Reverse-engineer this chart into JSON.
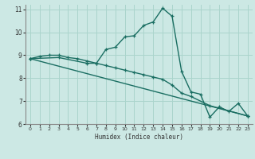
{
  "xlabel": "Humidex (Indice chaleur)",
  "bg_color": "#cce8e4",
  "grid_color": "#aad4cc",
  "line_color": "#1a6e62",
  "xlim": [
    -0.5,
    23.5
  ],
  "ylim": [
    6,
    11.2
  ],
  "xticks": [
    0,
    1,
    2,
    3,
    4,
    5,
    6,
    7,
    8,
    9,
    10,
    11,
    12,
    13,
    14,
    15,
    16,
    17,
    18,
    19,
    20,
    21,
    22,
    23
  ],
  "yticks": [
    6,
    7,
    8,
    9,
    10,
    11
  ],
  "line1_x": [
    0,
    1,
    2,
    3,
    4,
    5,
    6,
    7,
    8,
    9,
    10,
    11,
    12,
    13,
    14,
    15,
    16,
    17,
    18,
    19,
    20,
    21,
    22,
    23
  ],
  "line1_y": [
    8.85,
    8.95,
    9.0,
    9.0,
    8.9,
    8.85,
    8.75,
    8.65,
    9.25,
    9.35,
    9.8,
    9.85,
    10.3,
    10.45,
    11.05,
    10.7,
    8.3,
    7.4,
    7.3,
    6.3,
    6.75,
    6.55,
    6.9,
    6.35
  ],
  "line2_x": [
    0,
    23
  ],
  "line2_y": [
    8.85,
    6.35
  ],
  "line3_x": [
    0,
    3,
    6,
    7,
    8,
    9,
    10,
    11,
    12,
    13,
    14,
    15,
    16,
    17,
    19,
    23
  ],
  "line3_y": [
    8.85,
    8.9,
    8.65,
    8.65,
    8.55,
    8.45,
    8.35,
    8.25,
    8.15,
    8.05,
    7.95,
    7.7,
    7.35,
    7.2,
    6.8,
    6.35
  ]
}
